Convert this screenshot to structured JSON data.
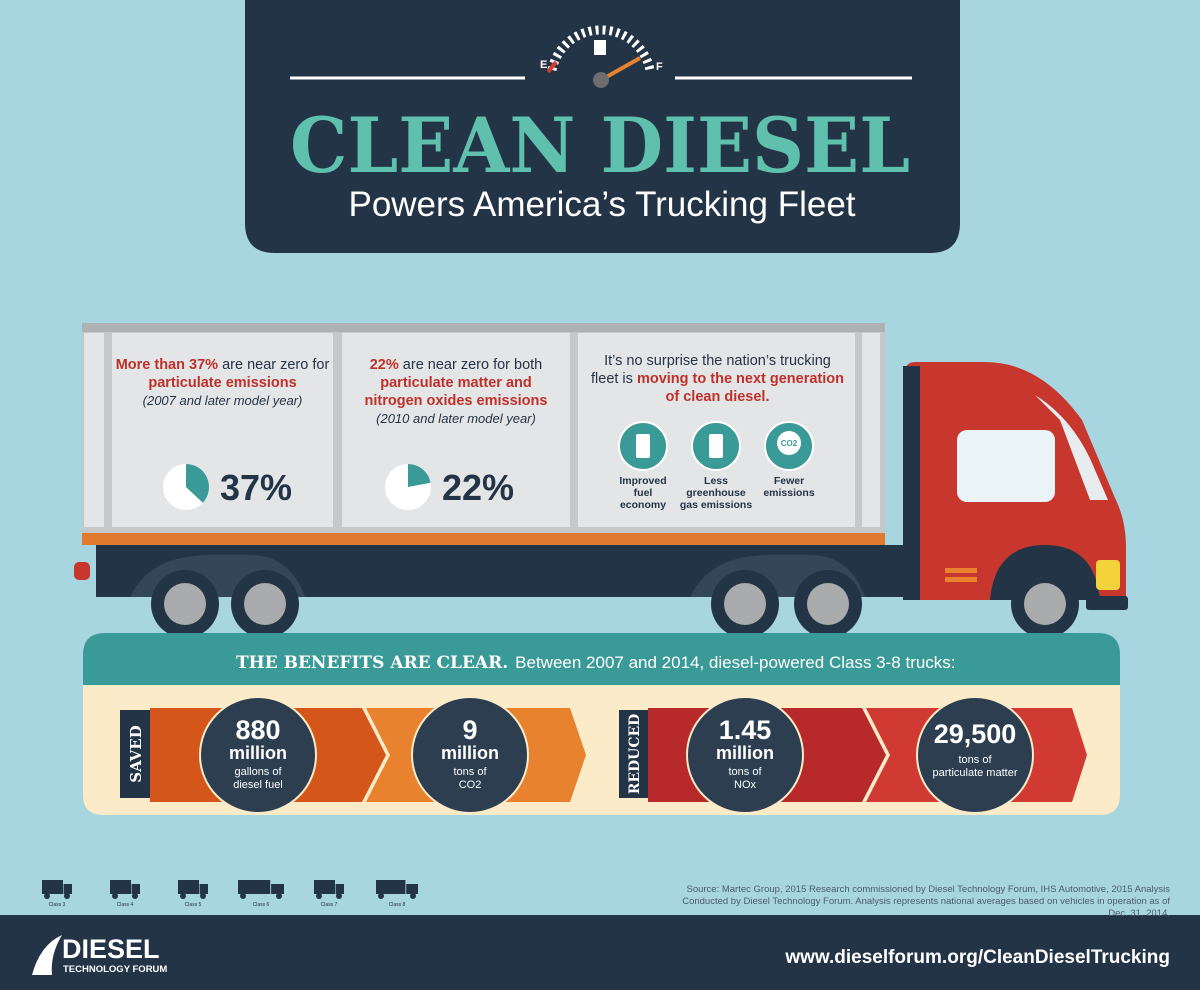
{
  "header": {
    "title": "CLEAN DIESEL",
    "subtitle": "Powers America’s Trucking Fleet",
    "gauge": {
      "empty": "E",
      "full": "F"
    }
  },
  "panels": [
    {
      "lead": "More than 37%",
      "text": "are near zero for",
      "highlight": "particulate emissions",
      "note": "(2007 and later model year)",
      "pie": {
        "value": 37,
        "label": "37%"
      }
    },
    {
      "lead": "22%",
      "text": "are near zero for both",
      "highlight": "particulate matter and nitrogen oxides emissions",
      "note": "(2010 and later model year)",
      "pie": {
        "value": 22,
        "label": "22%"
      }
    },
    {
      "text": "It’s no surprise the nation’s trucking fleet is",
      "highlight": "moving to the next generation of clean diesel.",
      "icons": [
        {
          "label": "Improved fuel economy"
        },
        {
          "label": "Less greenhouse gas emissions"
        },
        {
          "label": "Fewer emissions",
          "icon_text": "CO2"
        }
      ]
    }
  ],
  "benefits": {
    "heading": "THE BENEFITS ARE CLEAR.",
    "text": "Between 2007 and 2014, diesel-powered Class 3-8 trucks:",
    "groups": [
      {
        "label": "SAVED",
        "items": [
          {
            "amount": "880",
            "unit": "million",
            "desc": "gallons of diesel fuel"
          },
          {
            "amount": "9",
            "unit": "million",
            "desc": "tons of CO2"
          }
        ]
      },
      {
        "label": "REDUCED",
        "items": [
          {
            "amount": "1.45",
            "unit": "million",
            "desc": "tons of NOx"
          },
          {
            "amount": "29,500",
            "desc": "tons of particulate matter"
          }
        ]
      }
    ]
  },
  "truck_classes": [
    "Class 3",
    "Class 4",
    "Class 5",
    "Class 6",
    "Class 7",
    "Class 8"
  ],
  "source": "Source: Martec Group, 2015 Research commissioned by Diesel Technology Forum, IHS Automotive, 2015 Analysis Conducted by Diesel Technology Forum. Analysis represents national averages based on vehicles in operation as of Dec. 31, 2014.",
  "footer": {
    "logo": "DIESEL",
    "logo_sub": "TECHNOLOGY FORUM",
    "url": "www.dieselforum.org/CleanDieselTrucking"
  }
}
